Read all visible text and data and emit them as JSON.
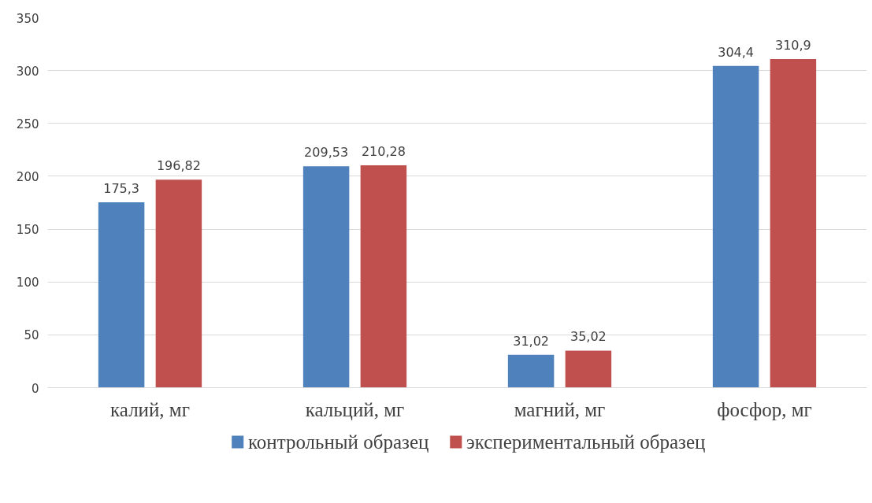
{
  "chart_data": {
    "type": "bar",
    "categories": [
      "калий, мг",
      "кальций, мг",
      "магний, мг",
      "фосфор, мг"
    ],
    "series": [
      {
        "name": "контрольный образец",
        "color": "#4f81bd",
        "values": [
          175.3,
          209.53,
          31.02,
          304.4
        ],
        "value_labels": [
          "175,3",
          "209,53",
          "31,02",
          "304,4"
        ]
      },
      {
        "name": "экспериментальный образец",
        "color": "#c0504d",
        "values": [
          196.82,
          210.28,
          35.02,
          310.9
        ],
        "value_labels": [
          "196,82",
          "210,28",
          "35,02",
          "310,9"
        ]
      }
    ],
    "ylim": [
      0,
      350
    ],
    "yticks": [
      0,
      50,
      100,
      150,
      200,
      250,
      300,
      350
    ],
    "grid": "y",
    "legend": "bottom"
  }
}
